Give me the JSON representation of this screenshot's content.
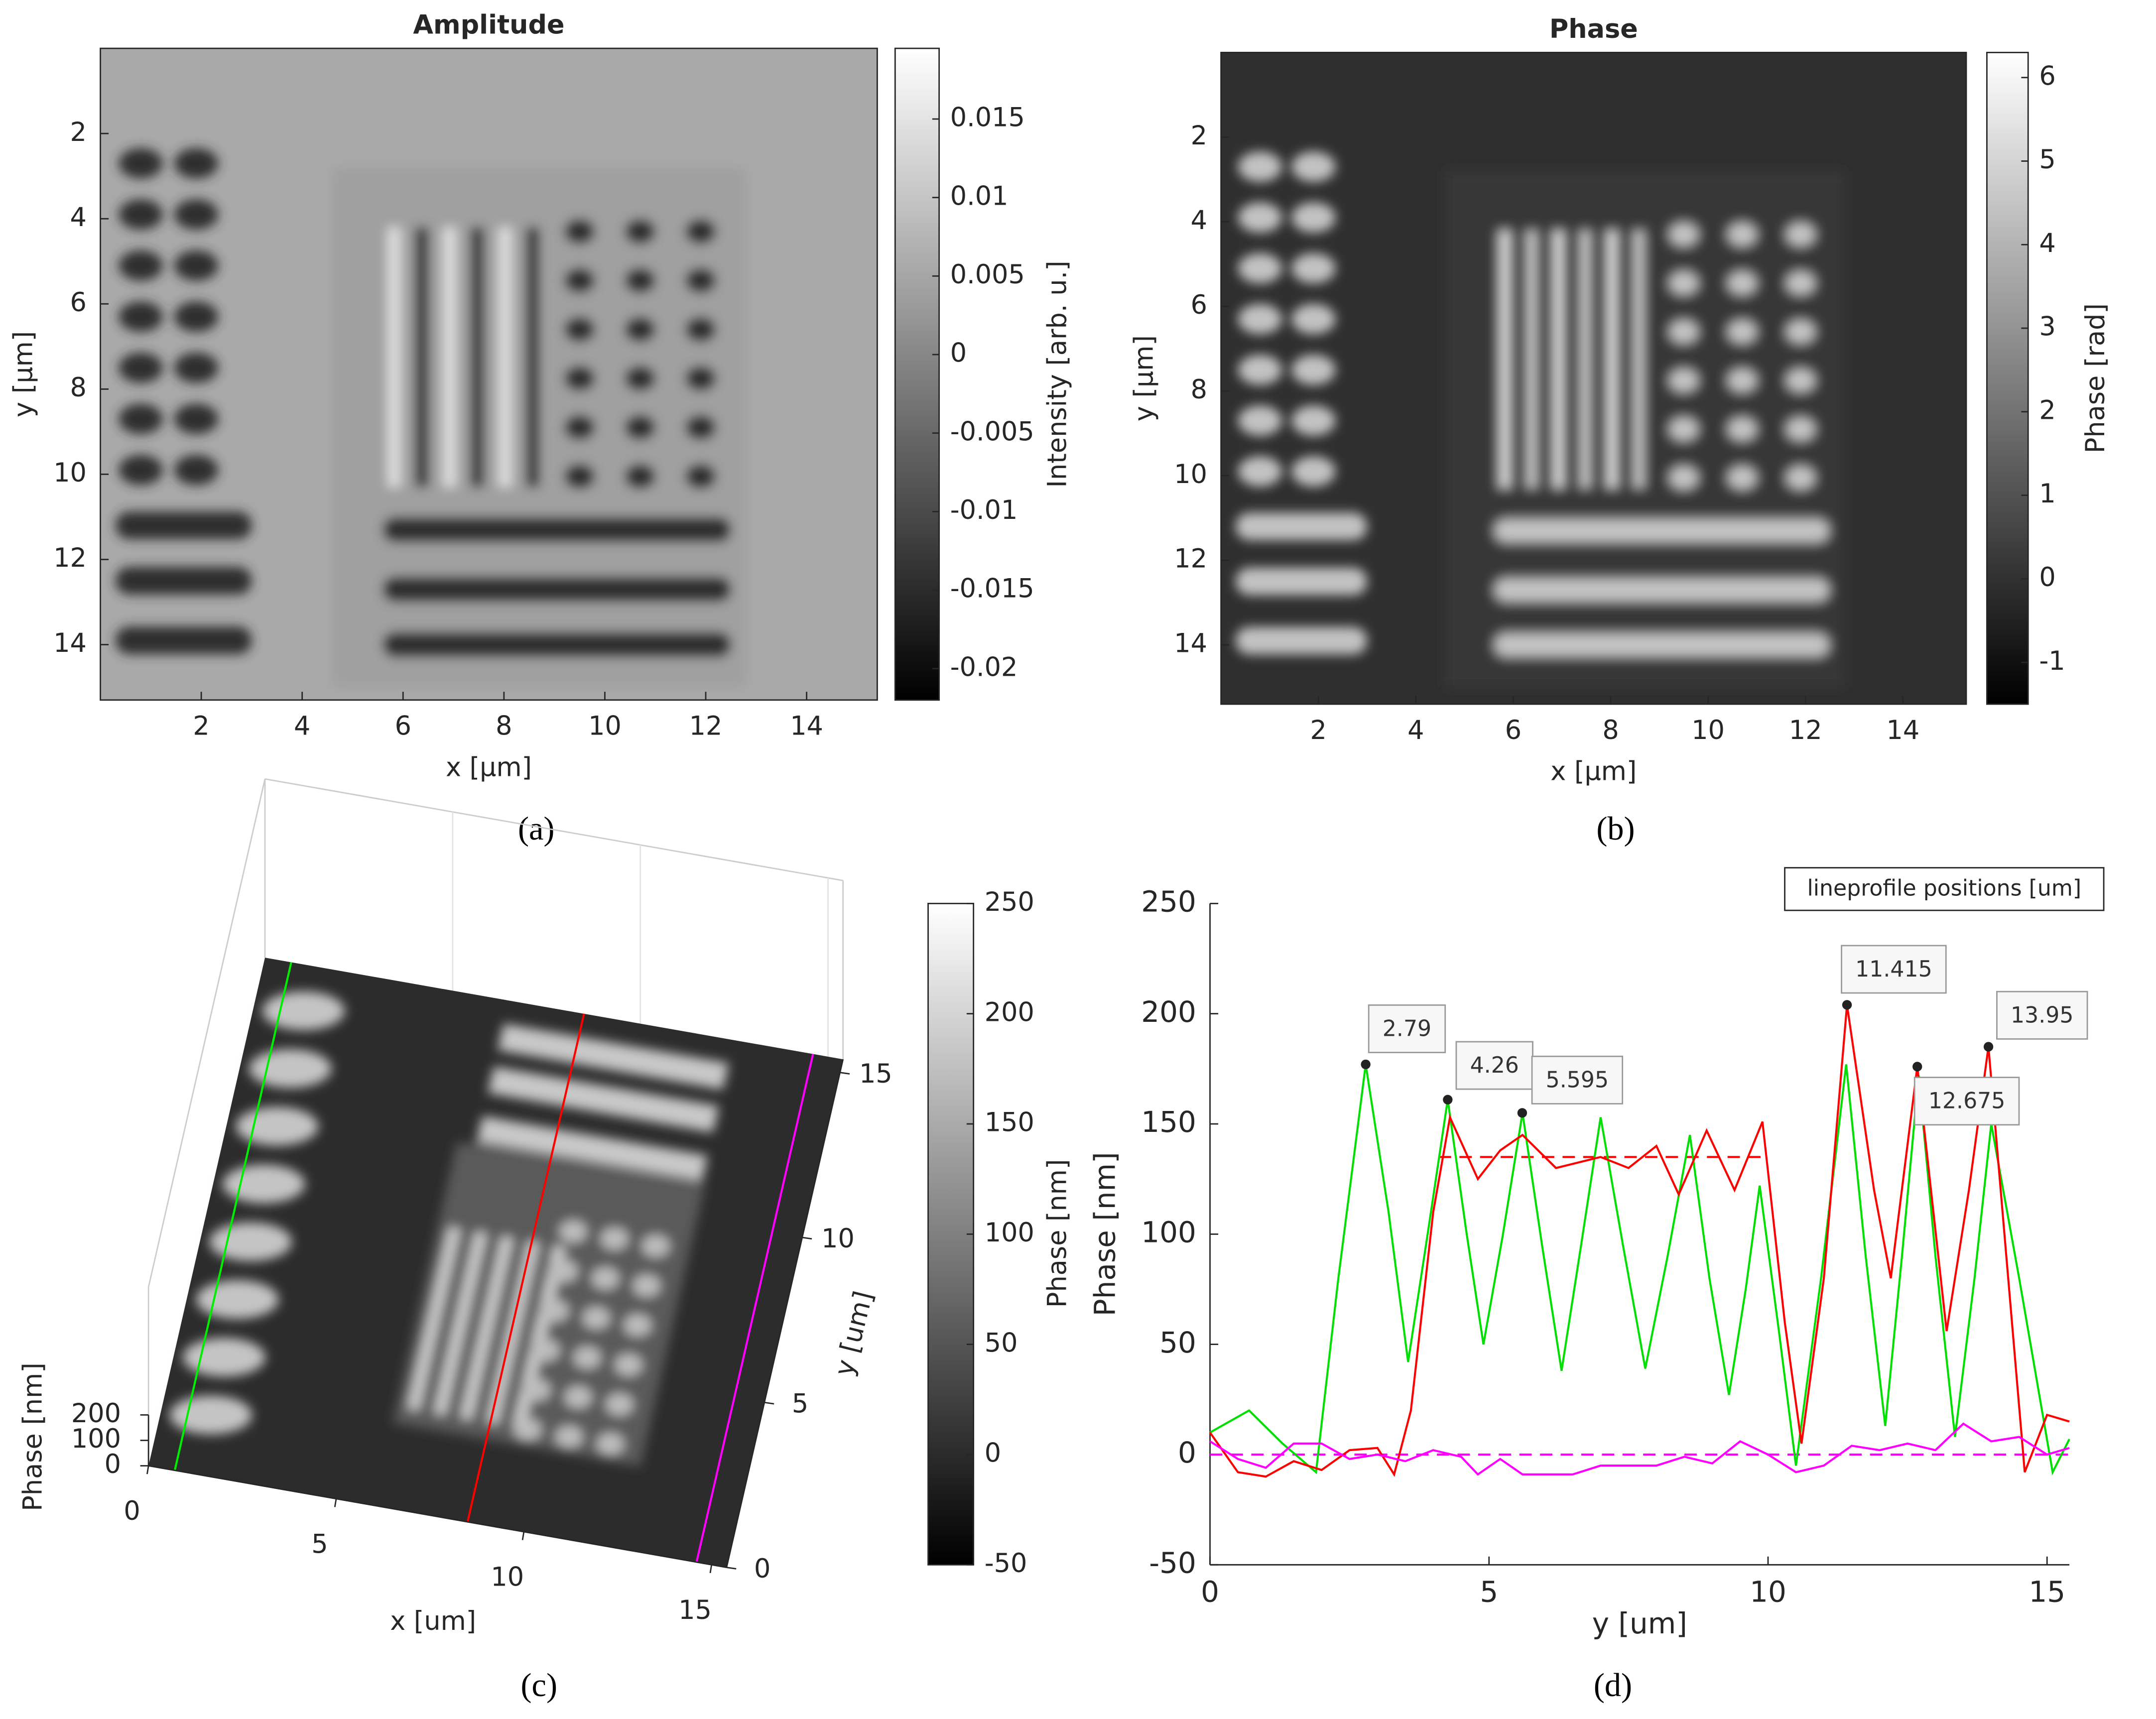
{
  "chart_data": [
    {
      "type": "heatmap",
      "title": "Amplitude",
      "xlabel": "x [µm]",
      "ylabel": "y [µm]",
      "caption": "(a)",
      "xlim": [
        0,
        15.4
      ],
      "xticks": [
        2,
        4,
        6,
        8,
        10,
        12,
        14
      ],
      "ylim": [
        0,
        15.3
      ],
      "yticks": [
        2,
        4,
        6,
        8,
        10,
        12,
        14
      ],
      "yreverse": true,
      "colormap": "gray",
      "colorbar": {
        "label": "Intensity [arb. u.]",
        "lim": [
          -0.022,
          0.0195
        ],
        "ticks": [
          -0.02,
          -0.015,
          -0.01,
          -0.005,
          0,
          0.005,
          0.01,
          0.015
        ]
      }
    },
    {
      "type": "heatmap",
      "title": "Phase",
      "xlabel": "x [µm]",
      "ylabel": "y [µm]",
      "caption": "(b)",
      "xlim": [
        0,
        15.3
      ],
      "xticks": [
        2,
        4,
        6,
        8,
        10,
        12,
        14
      ],
      "ylim": [
        0,
        15.4
      ],
      "yticks": [
        2,
        4,
        6,
        8,
        10,
        12,
        14
      ],
      "yreverse": true,
      "colormap": "gray",
      "colorbar": {
        "label": "Phase [rad]",
        "lim": [
          -1.5,
          6.3
        ],
        "ticks": [
          -1,
          0,
          1,
          2,
          3,
          4,
          5,
          6
        ]
      }
    },
    {
      "type": "surface3d",
      "xlabel": "x [um]",
      "ylabel": "y [um]",
      "zlabel": "Phase [nm]",
      "caption": "(c)",
      "xlim": [
        0,
        15.4
      ],
      "xticks": [
        0,
        5,
        10,
        15
      ],
      "ylim": [
        0,
        15.4
      ],
      "yticks": [
        0,
        5,
        10,
        15
      ],
      "zticks": [
        0,
        100,
        200
      ],
      "colormap": "gray",
      "colorbar": {
        "label": "Phase [nm]",
        "lim": [
          -50,
          250
        ],
        "ticks": [
          -50,
          0,
          50,
          100,
          150,
          200,
          250
        ]
      },
      "profile_lines": [
        {
          "color": "#00ee00",
          "x": 0.7
        },
        {
          "color": "#ff0000",
          "x": 8.5
        },
        {
          "color": "#ff00ff",
          "x": 14.6
        }
      ]
    },
    {
      "type": "line",
      "xlabel": "y [um]",
      "ylabel": "Phase [nm]",
      "caption": "(d)",
      "legend_title": "lineprofile positions [um]",
      "xlim": [
        0,
        15.4
      ],
      "xticks": [
        0,
        5,
        10,
        15
      ],
      "ylim": [
        -50,
        250
      ],
      "yticks": [
        -50,
        0,
        50,
        100,
        150,
        200,
        250
      ],
      "series": [
        {
          "color": "#00e000",
          "x": [
            0,
            0.7,
            1.3,
            1.9,
            2.3,
            2.79,
            3.2,
            3.55,
            3.9,
            4.26,
            4.6,
            4.9,
            5.25,
            5.6,
            5.95,
            6.3,
            6.65,
            7.0,
            7.4,
            7.8,
            8.2,
            8.6,
            8.95,
            9.3,
            9.6,
            9.85,
            10.2,
            10.5,
            10.95,
            11.4,
            11.75,
            12.1,
            12.4,
            12.7,
            13.0,
            13.35,
            13.7,
            14.0,
            14.5,
            15.1,
            15.4
          ],
          "values": [
            10,
            20,
            5,
            -8,
            80,
            177,
            110,
            42,
            100,
            161,
            100,
            50,
            100,
            155,
            95,
            38,
            95,
            153,
            95,
            39,
            90,
            145,
            80,
            27,
            75,
            122,
            55,
            -5,
            80,
            177,
            90,
            13,
            90,
            172,
            90,
            8,
            80,
            150,
            80,
            -8,
            7
          ]
        },
        {
          "color": "#ff0000",
          "x": [
            0,
            0.5,
            1.0,
            1.5,
            2.0,
            2.5,
            3.0,
            3.3,
            3.6,
            4.0,
            4.3,
            4.8,
            5.2,
            5.6,
            6.2,
            7.0,
            7.5,
            8.0,
            8.4,
            8.9,
            9.4,
            9.9,
            10.3,
            10.6,
            11.0,
            11.415,
            11.9,
            12.2,
            12.675,
            13.2,
            13.6,
            13.95,
            14.6,
            15.0,
            15.4
          ],
          "values": [
            10,
            -8,
            -10,
            -3,
            -7,
            2,
            3,
            -9,
            20,
            110,
            153,
            125,
            138,
            145,
            130,
            135,
            130,
            140,
            118,
            147,
            120,
            151,
            60,
            5,
            80,
            204,
            120,
            80,
            176,
            56,
            120,
            185,
            -8,
            18,
            15
          ]
        },
        {
          "color": "#ff00ff",
          "x": [
            0,
            0.5,
            1.0,
            1.5,
            2.0,
            2.5,
            3.0,
            3.5,
            4.0,
            4.5,
            4.8,
            5.2,
            5.6,
            6.0,
            6.5,
            7.0,
            7.5,
            8.0,
            8.5,
            9.0,
            9.5,
            10.0,
            10.5,
            11.0,
            11.5,
            12.0,
            12.5,
            13.0,
            13.5,
            14.0,
            14.5,
            15.0,
            15.4
          ],
          "values": [
            6,
            -2,
            -6,
            5,
            5,
            -2,
            0,
            -3,
            2,
            -1,
            -9,
            -2,
            -9,
            -9,
            -9,
            -5,
            -5,
            -5,
            -1,
            -4,
            6,
            0,
            -8,
            -5,
            4,
            2,
            5,
            2,
            14,
            6,
            8,
            0,
            3
          ]
        }
      ],
      "reference_lines": [
        {
          "color": "#ff0000",
          "x": [
            4.1,
            10
          ],
          "y": 135
        },
        {
          "color": "#ff00ff",
          "x": [
            0,
            15.4
          ],
          "y": 0
        }
      ],
      "annotations": [
        {
          "x": 2.79,
          "y": 177
        },
        {
          "x": 4.26,
          "y": 161
        },
        {
          "x": 5.595,
          "y": 155
        },
        {
          "x": 11.415,
          "y": 204
        },
        {
          "x": 12.675,
          "y": 176
        },
        {
          "x": 13.95,
          "y": 185
        }
      ]
    }
  ]
}
